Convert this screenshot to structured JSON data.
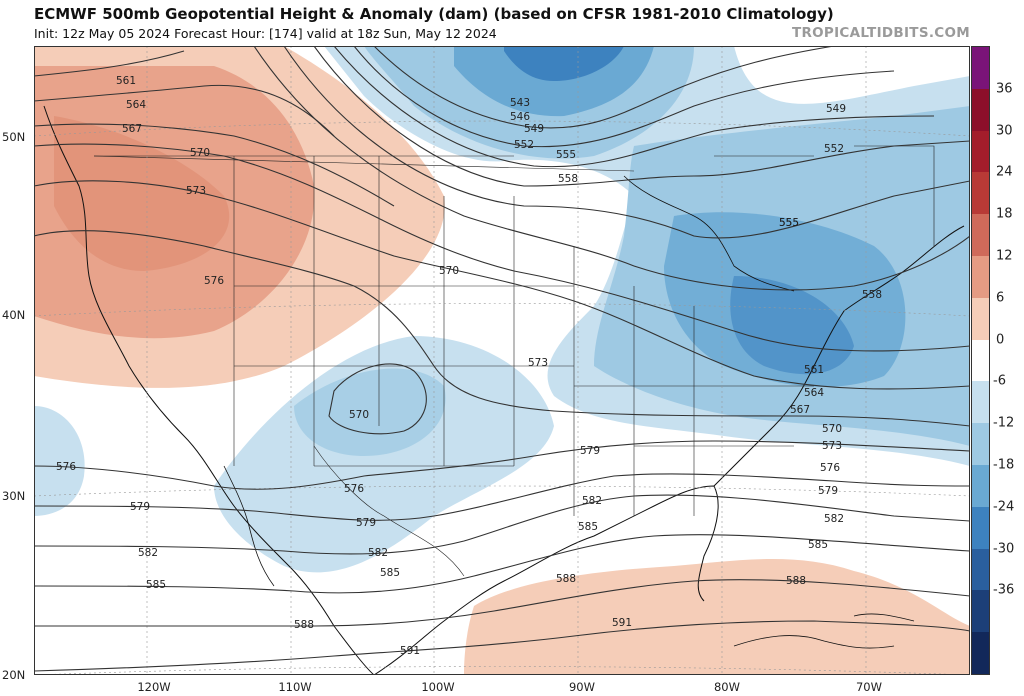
{
  "header": {
    "title": "ECMWF 500mb Geopotential Height & Anomaly (dam) (based on CFSR 1981-2010 Climatology)",
    "subtitle": "Init: 12z May 05 2024   Forecast Hour: [174]   valid at 18z Sun, May 12 2024",
    "brand": "TROPICALTIDBITS.COM"
  },
  "axes": {
    "lat_labels": [
      "50N",
      "40N",
      "30N",
      "20N"
    ],
    "lon_labels": [
      "120W",
      "110W",
      "100W",
      "90W",
      "80W",
      "70W"
    ]
  },
  "colorbar": {
    "ticks": [
      "36",
      "30",
      "24",
      "18",
      "12",
      "6",
      "0",
      "-6",
      "-12",
      "-18",
      "-24",
      "-30",
      "-36"
    ],
    "colors": [
      "#7a1478",
      "#8c0f2a",
      "#a31d2b",
      "#b83a36",
      "#cf6a5a",
      "#e59b83",
      "#f5cdb8",
      "#ffffff",
      "#c7e0ef",
      "#9ec9e3",
      "#6aa9d3",
      "#3d82bf",
      "#2a5f9e",
      "#1c3f78",
      "#12285a"
    ]
  },
  "contour_labels": {
    "north": [
      "561",
      "564",
      "567",
      "570",
      "573",
      "576"
    ],
    "center": [
      "570",
      "573",
      "570",
      "576",
      "579",
      "582",
      "585"
    ],
    "trough": [
      "543",
      "546",
      "549",
      "552",
      "555",
      "558",
      "555"
    ],
    "east": [
      "549",
      "552",
      "555",
      "558",
      "561",
      "564",
      "567",
      "570",
      "573",
      "576",
      "579",
      "582",
      "585",
      "588"
    ],
    "south": [
      "576",
      "579",
      "582",
      "585",
      "588",
      "591",
      "591",
      "579",
      "582",
      "585",
      "588"
    ]
  }
}
